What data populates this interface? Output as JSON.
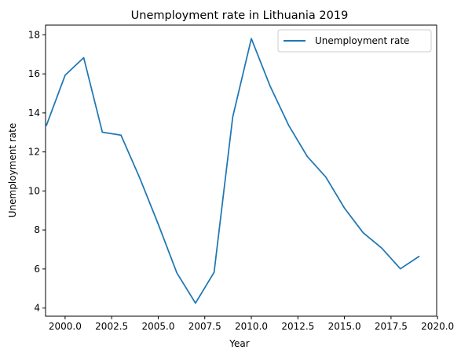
{
  "chart_data": {
    "type": "line",
    "title": "Unemployment rate in Lithuania 2019",
    "xlabel": "Year",
    "ylabel": "Unemployment rate",
    "xlim": [
      1998.95,
      2019.95
    ],
    "ylim": [
      3.58,
      18.5
    ],
    "xticks": [
      2000.0,
      2002.5,
      2005.0,
      2007.5,
      2010.0,
      2012.5,
      2015.0,
      2017.5,
      2020.0
    ],
    "xtick_labels": [
      "2000.0",
      "2002.5",
      "2005.0",
      "2007.5",
      "2010.0",
      "2012.5",
      "2015.0",
      "2017.5",
      "2020.0"
    ],
    "yticks": [
      4,
      6,
      8,
      10,
      12,
      14,
      16,
      18
    ],
    "ytick_labels": [
      "4",
      "6",
      "8",
      "10",
      "12",
      "14",
      "16",
      "18"
    ],
    "grid": false,
    "legend_position": "top-right",
    "series": [
      {
        "name": "Unemployment rate",
        "color": "#1f77b4",
        "x": [
          1999,
          2000,
          2001,
          2002,
          2003,
          2004,
          2005,
          2006,
          2007,
          2008,
          2009,
          2010,
          2011,
          2012,
          2013,
          2014,
          2015,
          2016,
          2017,
          2018,
          2019
        ],
        "y": [
          13.37,
          15.93,
          16.83,
          13.01,
          12.86,
          10.68,
          8.3,
          5.8,
          4.25,
          5.83,
          13.79,
          17.81,
          15.39,
          13.37,
          11.77,
          10.71,
          9.12,
          7.86,
          7.07,
          6.01,
          6.64
        ]
      }
    ]
  }
}
